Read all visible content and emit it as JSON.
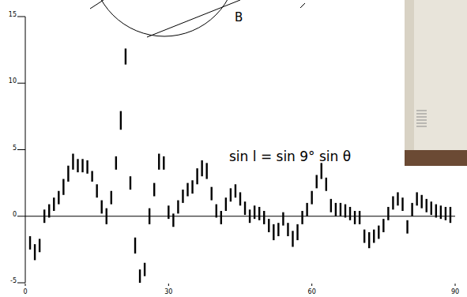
{
  "chart_data": {
    "type": "errorbar",
    "annotations": [
      "sin l = sin 9° sin θ",
      "B"
    ],
    "x": [
      1,
      2,
      3,
      4,
      5,
      6,
      7,
      8,
      9,
      10,
      11,
      12,
      13,
      14,
      15,
      16,
      17,
      18,
      19,
      20,
      21,
      22,
      23,
      24,
      25,
      26,
      27,
      28,
      29,
      30,
      31,
      32,
      33,
      34,
      35,
      36,
      37,
      38,
      39,
      40,
      41,
      42,
      43,
      44,
      45,
      46,
      47,
      48,
      49,
      50,
      51,
      52,
      53,
      54,
      55,
      56,
      57,
      58,
      59,
      60,
      61,
      62,
      63,
      64,
      65,
      66,
      67,
      68,
      69,
      70,
      71,
      72,
      73,
      74,
      75,
      76,
      77,
      78,
      79,
      80,
      81,
      82,
      83,
      84,
      85,
      86,
      87,
      88,
      89
    ],
    "values": [
      -2,
      -2.7,
      -2.2,
      0,
      0.4,
      0.9,
      1.4,
      2.2,
      3.2,
      4.1,
      3.8,
      3.8,
      3.7,
      3,
      1.9,
      0.7,
      0,
      1.4,
      4,
      7.2,
      12,
      2.5,
      -2.2,
      -4.5,
      -4,
      0,
      2,
      4.1,
      4,
      0.3,
      -0.3,
      0.7,
      1.5,
      2,
      2.2,
      3,
      3.6,
      3.4,
      1.7,
      0.4,
      -0.1,
      0.9,
      1.6,
      1.9,
      1.3,
      0.6,
      0,
      0.3,
      0.2,
      -0.1,
      -0.7,
      -1.2,
      -1,
      -0.2,
      -1,
      -1.7,
      -1.2,
      -0.1,
      0.5,
      1.4,
      2.6,
      3.4,
      2.4,
      0.8,
      0.5,
      0.5,
      0.4,
      0.2,
      -0.1,
      -0.1,
      -1.5,
      -1.8,
      -1.5,
      -1.2,
      -0.7,
      0.2,
      1,
      1.3,
      0.9,
      -0.8,
      0.5,
      1.3,
      1.1,
      0.8,
      0.6,
      0.4,
      0.3,
      0.2,
      0.1
    ],
    "errors": [
      0.5,
      0.6,
      0.5,
      0.5,
      0.5,
      0.5,
      0.5,
      0.6,
      0.6,
      0.6,
      0.5,
      0.5,
      0.5,
      0.4,
      0.5,
      0.5,
      0.6,
      0.5,
      0.5,
      0.7,
      0.6,
      0.5,
      0.6,
      0.5,
      0.5,
      0.6,
      0.5,
      0.6,
      0.5,
      0.5,
      0.5,
      0.5,
      0.5,
      0.5,
      0.5,
      0.6,
      0.6,
      0.6,
      0.5,
      0.5,
      0.5,
      0.5,
      0.5,
      0.5,
      0.5,
      0.5,
      0.5,
      0.5,
      0.5,
      0.5,
      0.5,
      0.6,
      0.5,
      0.5,
      0.5,
      0.6,
      0.6,
      0.5,
      0.5,
      0.5,
      0.5,
      0.6,
      0.5,
      0.5,
      0.5,
      0.5,
      0.5,
      0.5,
      0.5,
      0.5,
      0.5,
      0.6,
      0.5,
      0.5,
      0.5,
      0.5,
      0.5,
      0.5,
      0.5,
      0.5,
      0.5,
      0.5,
      0.5,
      0.5,
      0.5,
      0.5,
      0.5,
      0.5,
      0.6
    ],
    "color": "#000000",
    "xlim": [
      0,
      90
    ],
    "xticks": [
      0,
      30,
      60,
      90
    ],
    "ylim": [
      -5,
      15
    ],
    "yticks": [
      -5,
      0,
      5,
      10,
      15
    ]
  }
}
